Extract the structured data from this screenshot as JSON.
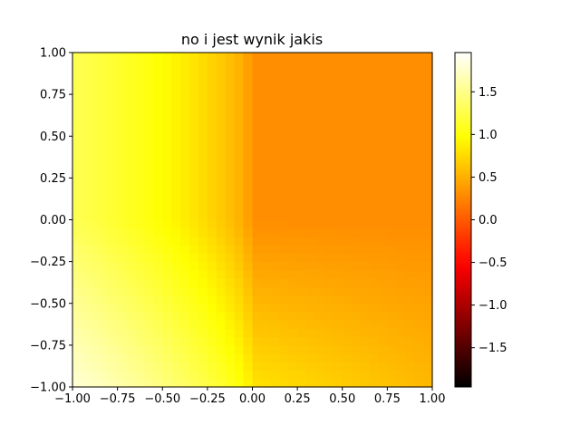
{
  "chart_data": {
    "type": "heatmap",
    "title": "no i jest wynik jakis",
    "xlabel": "",
    "ylabel": "",
    "xlim": [
      -1.0,
      1.0
    ],
    "ylim": [
      -1.0,
      1.0
    ],
    "xticks": [
      "−1.00",
      "−0.75",
      "−0.50",
      "−0.25",
      "0.00",
      "0.25",
      "0.50",
      "0.75",
      "1.00"
    ],
    "yticks": [
      "−1.00",
      "−0.75",
      "−0.50",
      "−0.25",
      "0.00",
      "0.25",
      "0.50",
      "0.75",
      "1.00"
    ],
    "xtick_values": [
      -1.0,
      -0.75,
      -0.5,
      -0.25,
      0.0,
      0.25,
      0.5,
      0.75,
      1.0
    ],
    "ytick_values": [
      -1.0,
      -0.75,
      -0.5,
      -0.25,
      0.0,
      0.25,
      0.5,
      0.75,
      1.0
    ],
    "grid": false,
    "colormap": "hot",
    "colorbar": {
      "range": [
        -1.96,
        1.96
      ],
      "ticks": [
        "−1.5",
        "−1.0",
        "−0.5",
        "0.0",
        "0.5",
        "1.0",
        "1.5"
      ],
      "tick_values": [
        -1.5,
        -1.0,
        -0.5,
        0.0,
        0.5,
        1.0,
        1.5
      ]
    },
    "grid_resolution": 40,
    "z_function": "z(x,y) = max(0,-x)^0.6 + 0.5*max(0,-y)*(1 - 0.5*max(0,x)) + 0.3",
    "z_range_shown": [
      0.3,
      1.95
    ]
  }
}
